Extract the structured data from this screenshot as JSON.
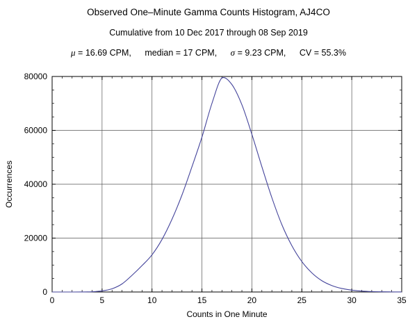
{
  "header": {
    "title": "Observed One–Minute Gamma Counts Histogram, AJ4CO",
    "subtitle": "Cumulative from 10 Dec 2017 through 08 Sep 2019",
    "stats": {
      "mu_symbol": "μ",
      "mu_text": " = 16.69 CPM,",
      "median_text": "median = 17 CPM,",
      "sigma_symbol": "σ",
      "sigma_text": " = 9.23 CPM,",
      "cv_text": "CV = 55.3%"
    }
  },
  "chart_data": {
    "type": "line",
    "title": "Observed One–Minute Gamma Counts Histogram, AJ4CO",
    "xlabel": "Counts in One Minute",
    "ylabel": "Occurrences",
    "xlim": [
      0,
      35
    ],
    "ylim": [
      0,
      80000
    ],
    "xticks": [
      0,
      5,
      10,
      15,
      20,
      25,
      30,
      35
    ],
    "yticks": [
      0,
      20000,
      40000,
      60000,
      80000
    ],
    "x_minor": 1,
    "y_minor": 5000,
    "grid": true,
    "legend": false,
    "line_color": "#44449b",
    "grid_color": "#555555",
    "frame_color": "#000000",
    "series": [
      {
        "name": "occurrences",
        "x": [
          0,
          1,
          2,
          3,
          4,
          5,
          6,
          7,
          8,
          9,
          10,
          11,
          12,
          13,
          14,
          15,
          16,
          17,
          18,
          19,
          20,
          21,
          22,
          23,
          24,
          25,
          26,
          27,
          28,
          29,
          30,
          31,
          32,
          33,
          34,
          35
        ],
        "y": [
          0,
          0,
          0,
          10,
          80,
          400,
          1200,
          3000,
          6200,
          9800,
          13800,
          19500,
          27000,
          36000,
          46500,
          57500,
          70000,
          79500,
          77000,
          69500,
          58500,
          46500,
          35000,
          25000,
          17200,
          11300,
          7100,
          4200,
          2400,
          1300,
          700,
          350,
          160,
          70,
          30,
          10
        ]
      }
    ]
  }
}
